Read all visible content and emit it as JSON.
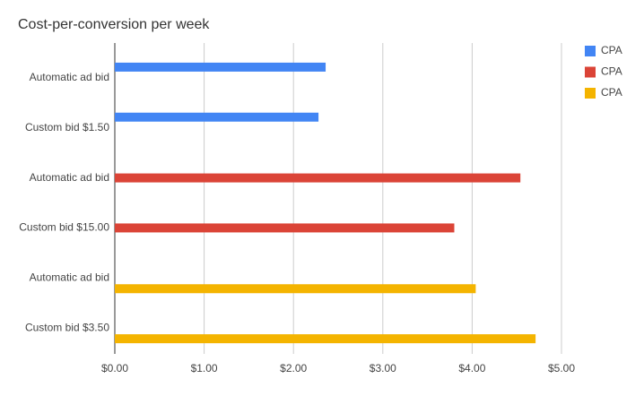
{
  "chart_data": {
    "type": "hbar",
    "title": "Cost-per-conversion per week",
    "categories": [
      "Automatic ad bid",
      "Custom bid $1.50",
      "Automatic ad bid",
      "Custom bid $15.00",
      "Automatic ad bid",
      "Custom bid $3.50"
    ],
    "series": [
      {
        "name": "CPA",
        "color": "#4285f4",
        "values": [
          2.36,
          2.28,
          null,
          null,
          null,
          null
        ]
      },
      {
        "name": "CPA",
        "color": "#db4437",
        "values": [
          null,
          null,
          4.54,
          3.8,
          null,
          null
        ]
      },
      {
        "name": "CPA",
        "color": "#f4b400",
        "values": [
          null,
          null,
          null,
          null,
          4.04,
          4.71
        ]
      }
    ],
    "xlim": [
      0,
      5
    ],
    "xticks": [
      {
        "value": 0,
        "label": "$0.00"
      },
      {
        "value": 1,
        "label": "$1.00"
      },
      {
        "value": 2,
        "label": "$2.00"
      },
      {
        "value": 3,
        "label": "$3.00"
      },
      {
        "value": 4,
        "label": "$4.00"
      },
      {
        "value": 5,
        "label": "$5.00"
      }
    ],
    "grid": true,
    "legend": "right"
  }
}
